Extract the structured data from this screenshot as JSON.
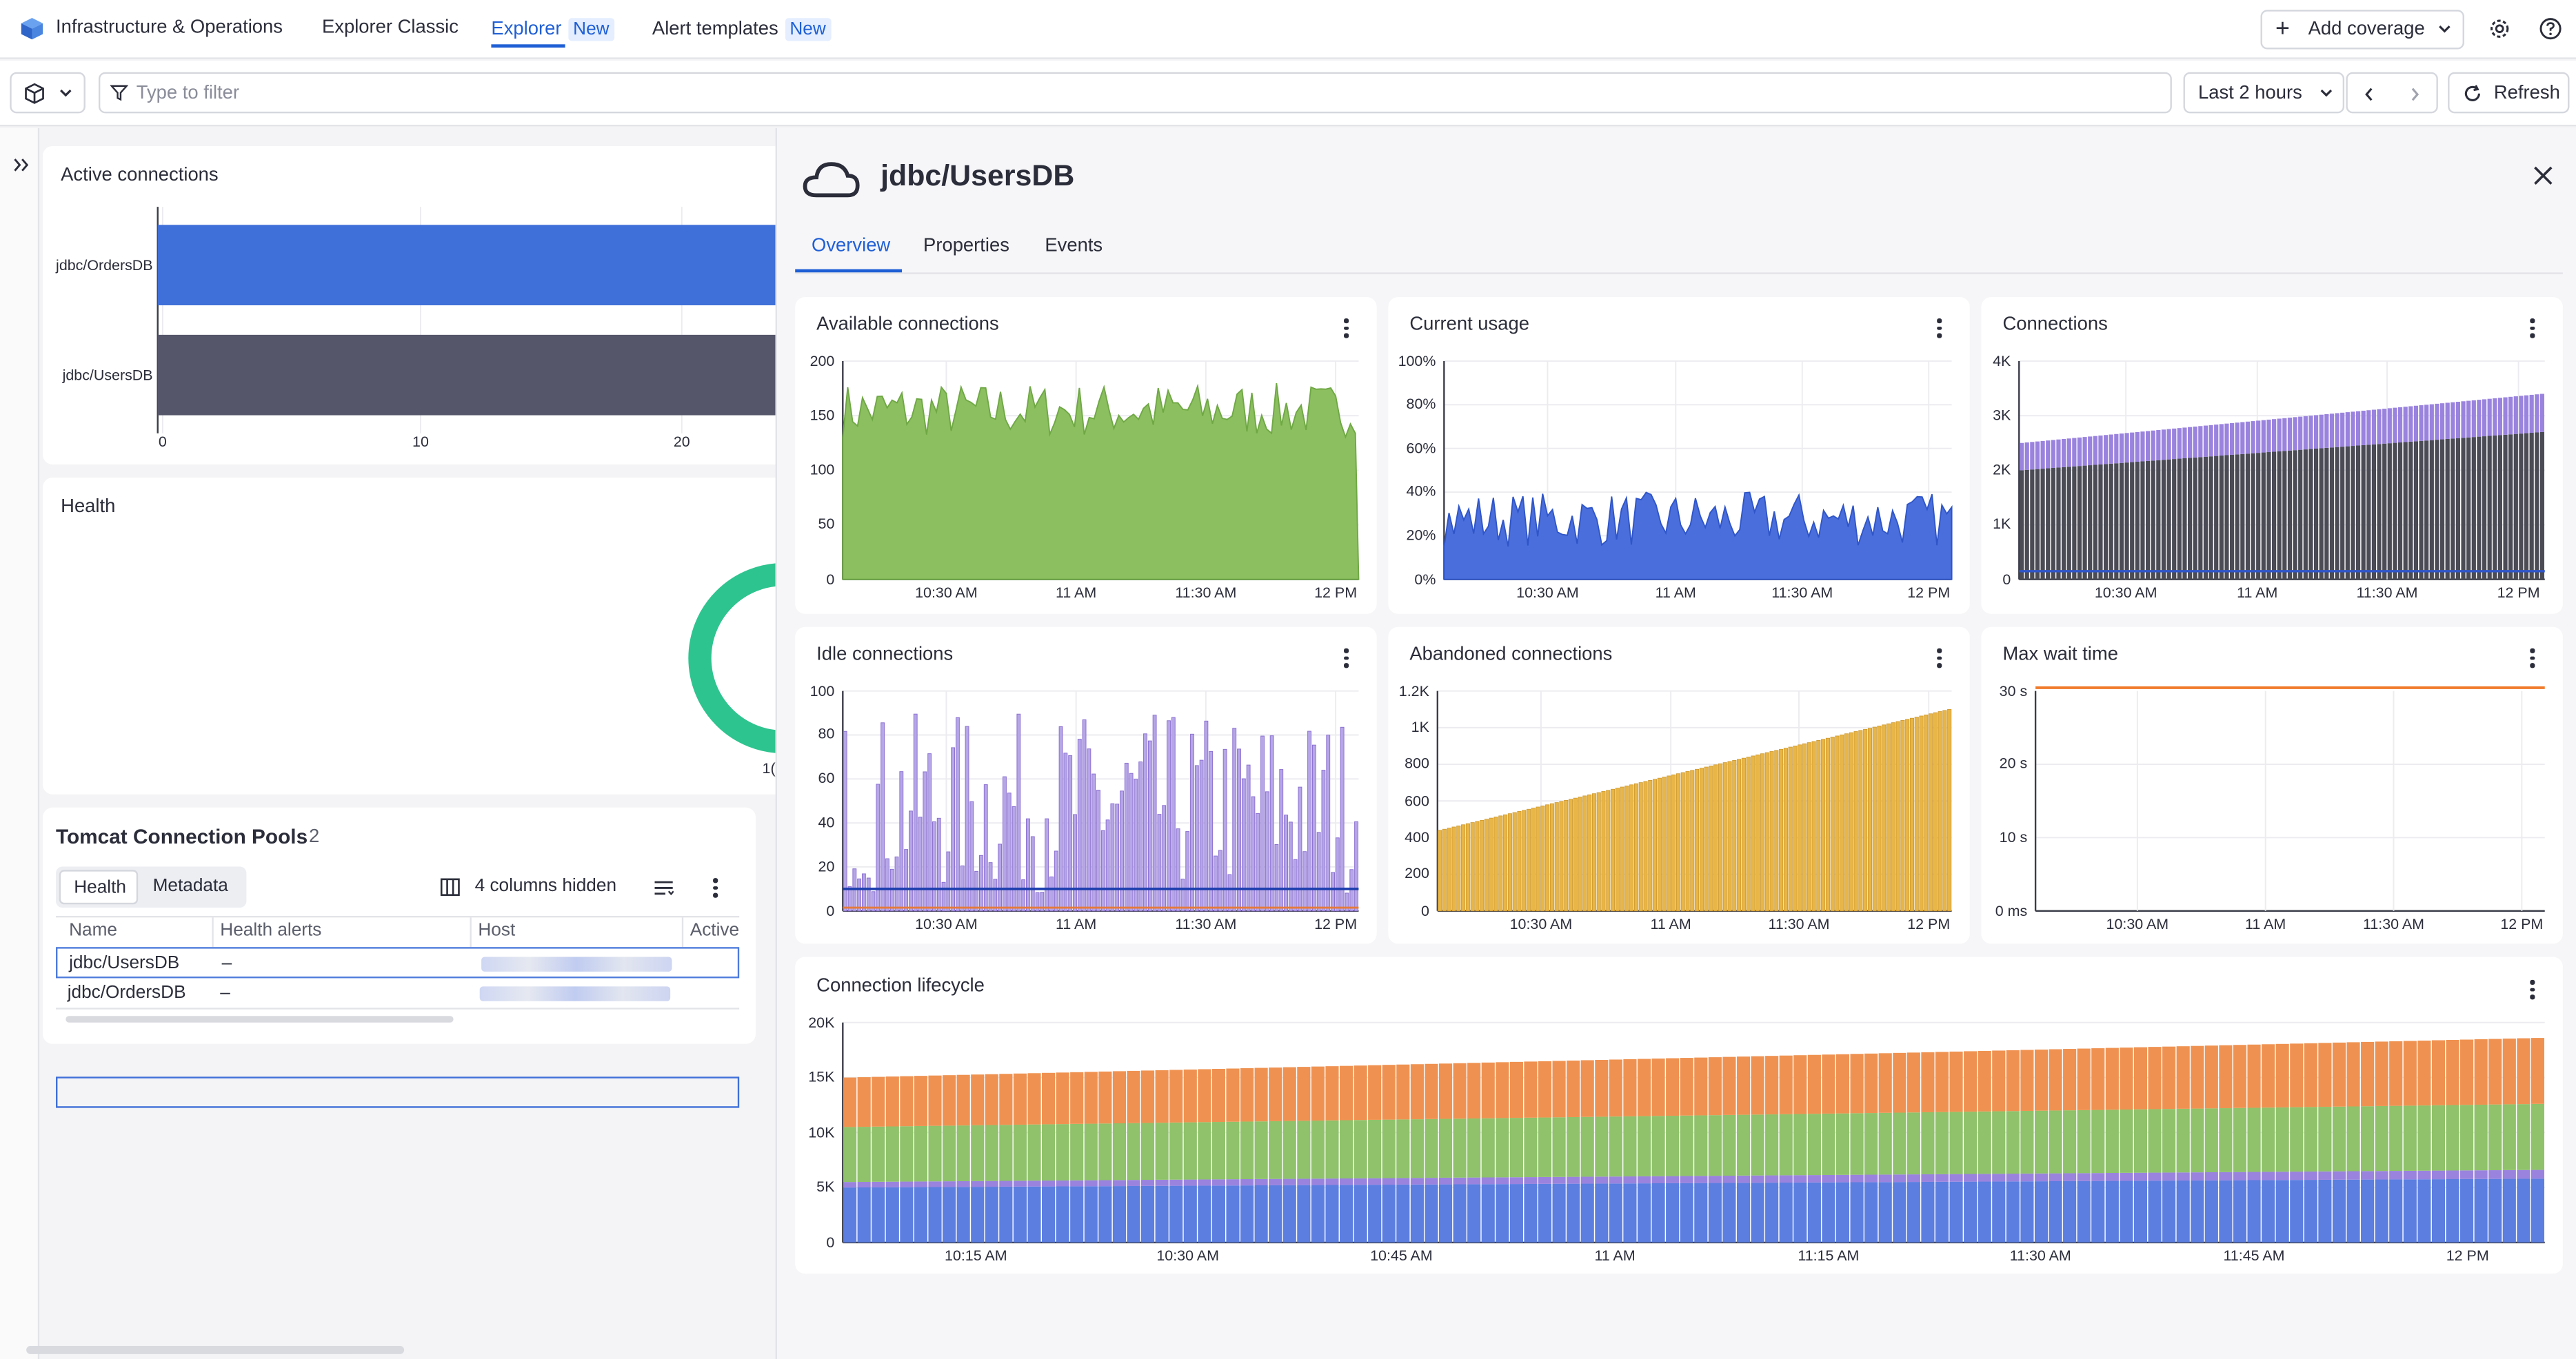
{
  "topbar": {
    "app_name": "Infrastructure & Operations",
    "nav": [
      {
        "label": "Explorer Classic"
      },
      {
        "label": "Explorer",
        "badge": "New"
      },
      {
        "label": "Alert templates",
        "badge": "New"
      }
    ],
    "add_coverage": "Add coverage"
  },
  "filterbar": {
    "placeholder": "Type to filter",
    "timeframe": "Last 2 hours",
    "refresh": "Refresh"
  },
  "left": {
    "active_connections": {
      "title": "Active connections",
      "categories": [
        "jdbc/OrdersDB",
        "jdbc/UsersDB"
      ],
      "x_ticks": [
        "0",
        "10",
        "20"
      ],
      "colors": [
        "#3f6fd8",
        "#55566a"
      ]
    },
    "health": {
      "title": "Health",
      "partial_label": "1("
    },
    "pools": {
      "title": "Tomcat Connection Pools",
      "count": "2",
      "tabs": [
        "Health",
        "Metadata"
      ],
      "columns_hidden": "4 columns hidden",
      "columns": [
        "Name",
        "Health alerts",
        "Host",
        "Active"
      ],
      "rows": [
        {
          "name": "jdbc/UsersDB",
          "alerts": "–"
        },
        {
          "name": "jdbc/OrdersDB",
          "alerts": "–"
        }
      ]
    }
  },
  "detail": {
    "title": "jdbc/UsersDB",
    "tabs": [
      "Overview",
      "Properties",
      "Events"
    ],
    "time_ticks": [
      "10:30 AM",
      "11 AM",
      "11:30 AM",
      "12 PM"
    ],
    "lifecycle_time_ticks": [
      "10:15 AM",
      "10:30 AM",
      "10:45 AM",
      "11 AM",
      "11:15 AM",
      "11:30 AM",
      "11:45 AM",
      "12 PM"
    ],
    "cards": {
      "available": {
        "title": "Available connections",
        "y_ticks": [
          "200",
          "150",
          "100",
          "50",
          "0"
        ]
      },
      "usage": {
        "title": "Current usage",
        "y_ticks": [
          "100%",
          "80%",
          "60%",
          "40%",
          "20%",
          "0%"
        ]
      },
      "connections": {
        "title": "Connections",
        "y_ticks": [
          "4K",
          "3K",
          "2K",
          "1K",
          "0"
        ]
      },
      "idle": {
        "title": "Idle connections",
        "y_ticks": [
          "100",
          "80",
          "60",
          "40",
          "20",
          "0"
        ]
      },
      "abandoned": {
        "title": "Abandoned connections",
        "y_ticks": [
          "1.2K",
          "1K",
          "800",
          "600",
          "400",
          "200",
          "0"
        ]
      },
      "maxwait": {
        "title": "Max wait time",
        "y_ticks": [
          "30 s",
          "20 s",
          "10 s",
          "0 ms"
        ]
      },
      "lifecycle": {
        "title": "Connection lifecycle",
        "y_ticks": [
          "20K",
          "15K",
          "10K",
          "5K",
          "0"
        ]
      }
    }
  },
  "chart_data": [
    {
      "type": "bar",
      "title": "Active connections",
      "orientation": "horizontal",
      "categories": [
        "jdbc/OrdersDB",
        "jdbc/UsersDB"
      ],
      "values": [
        24,
        24
      ],
      "xlim": [
        0,
        24
      ]
    },
    {
      "type": "area",
      "title": "Available connections",
      "ylim": [
        0,
        200
      ],
      "approx_range": [
        120,
        185
      ],
      "color": "#8cbf5f"
    },
    {
      "type": "area",
      "title": "Current usage",
      "ylim": [
        0,
        100
      ],
      "approx_range": [
        12,
        45
      ],
      "color": "#4a6fdc"
    },
    {
      "type": "bar",
      "title": "Connections",
      "ylim": [
        0,
        4000
      ],
      "stacked": true,
      "series": [
        {
          "name": "",
          "start": 2400,
          "end": 3500
        },
        {
          "name": "",
          "start": 800,
          "end": 600
        }
      ]
    },
    {
      "type": "bar",
      "title": "Idle connections",
      "ylim": [
        0,
        100
      ],
      "approx_range": [
        10,
        90
      ],
      "color": "#8a6fcf"
    },
    {
      "type": "bar",
      "title": "Abandoned connections",
      "ylim": [
        0,
        1200
      ],
      "start": 450,
      "end": 1100,
      "color": "#e8b547"
    },
    {
      "type": "line",
      "title": "Max wait time",
      "ylim": [
        0,
        30
      ],
      "values_constant": 30,
      "unit": "s",
      "color": "#f07a2a"
    },
    {
      "type": "bar",
      "title": "Connection lifecycle",
      "stacked": true,
      "ylim": [
        0,
        20000
      ],
      "series": [
        {
          "name": "",
          "start": 5000,
          "end": 5800
        },
        {
          "name": "",
          "start": 500,
          "end": 800
        },
        {
          "name": "",
          "start": 5000,
          "end": 6000
        },
        {
          "name": "",
          "start": 4500,
          "end": 6000
        }
      ]
    }
  ],
  "colors": {
    "accent": "#1f5fd6",
    "green": "#8cbf5f",
    "blue": "#4a6fdc",
    "purple": "#8a6fcf",
    "yellow": "#e8b547",
    "orange": "#f07a2a",
    "teal": "#2ec48f"
  }
}
